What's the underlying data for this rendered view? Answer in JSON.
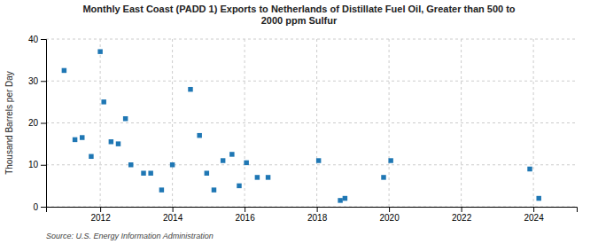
{
  "chart_data": {
    "type": "scatter",
    "title": "Monthly East Coast (PADD 1) Exports to Netherlands of Distillate Fuel Oil, Greater than 500 to\n2000 ppm Sulfur",
    "ylabel": "Thousand Barrels per Day",
    "source": "Source: U.S. Energy Information Administration",
    "marker": "square",
    "grid": true,
    "xlim": [
      2010.5,
      2025.2
    ],
    "ylim": [
      0,
      40
    ],
    "xticks": [
      2012,
      2014,
      2016,
      2018,
      2020,
      2022,
      2024
    ],
    "yticks": [
      0,
      10,
      20,
      30,
      40
    ],
    "x": [
      2011.0,
      2011.3,
      2011.5,
      2011.75,
      2012.0,
      2012.1,
      2012.3,
      2012.5,
      2012.7,
      2012.85,
      2013.2,
      2013.4,
      2013.7,
      2014.0,
      2014.5,
      2014.75,
      2014.95,
      2015.15,
      2015.4,
      2015.65,
      2015.85,
      2016.05,
      2016.35,
      2016.65,
      2018.05,
      2018.65,
      2018.78,
      2019.85,
      2020.05,
      2023.9,
      2024.15
    ],
    "y": [
      32.5,
      16.0,
      16.5,
      12.0,
      37.0,
      25.0,
      15.5,
      15.0,
      21.0,
      10.0,
      8.0,
      8.0,
      4.0,
      10.0,
      28.0,
      17.0,
      8.0,
      4.0,
      11.0,
      12.5,
      5.0,
      10.5,
      7.0,
      7.0,
      11.0,
      1.5,
      2.0,
      7.0,
      11.0,
      9.0,
      2.0
    ]
  }
}
